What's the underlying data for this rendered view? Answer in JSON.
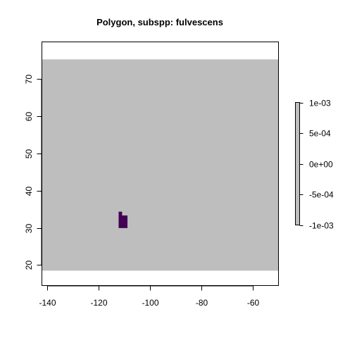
{
  "chart_data": {
    "type": "heatmap",
    "title": "Polygon, subspp: fulvescens",
    "xlabel": "",
    "ylabel": "",
    "xlim": [
      -142,
      -50
    ],
    "ylim": [
      14.5,
      80
    ],
    "x_ticks": [
      -140,
      -120,
      -100,
      -80,
      -60
    ],
    "y_ticks": [
      20,
      30,
      40,
      50,
      60,
      70
    ],
    "x_tick_labels": [
      "-140",
      "-120",
      "-100",
      "-80",
      "-60"
    ],
    "y_tick_labels": [
      "20",
      "30",
      "40",
      "50",
      "60",
      "70"
    ],
    "raster_extent": {
      "xmin": -142,
      "xmax": -50,
      "ymin": 18.5,
      "ymax": 75.3
    },
    "raster_fill_color": "#bebebe",
    "polygon": {
      "color": "#440154",
      "vertices": [
        [
          -112.1,
          30.0
        ],
        [
          -112.1,
          34.3
        ],
        [
          -110.9,
          34.3
        ],
        [
          -110.9,
          33.3
        ],
        [
          -108.8,
          33.3
        ],
        [
          -108.8,
          30.0
        ]
      ]
    },
    "legend": {
      "position": "right",
      "color": "#bebebe",
      "range": [
        -0.001,
        0.001
      ],
      "ticks": [
        0.001,
        0.0005,
        0,
        -0.0005,
        -0.001
      ],
      "tick_labels": [
        "1e-03",
        "5e-04",
        "0e+00",
        "-5e-04",
        "-1e-03"
      ]
    }
  }
}
